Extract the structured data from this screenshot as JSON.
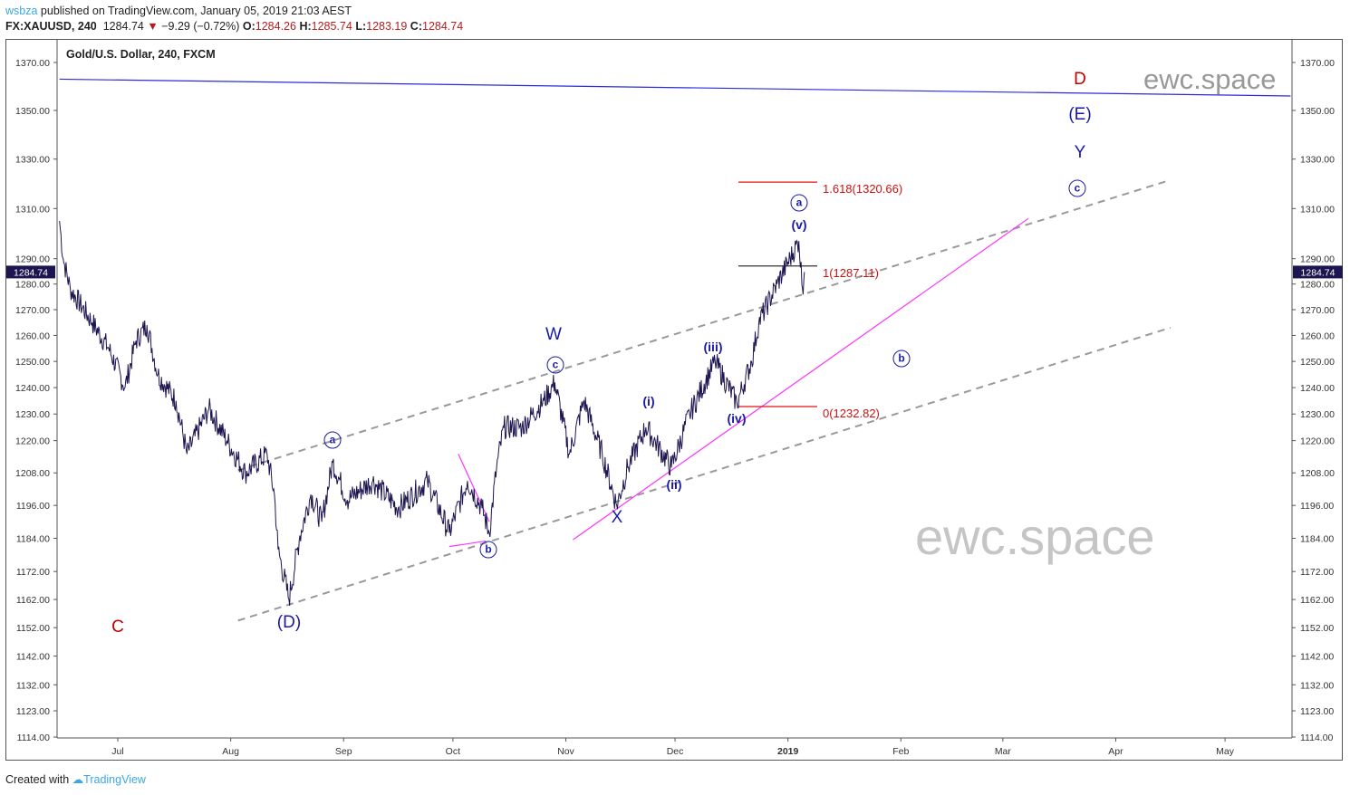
{
  "header": {
    "user": "wsbza",
    "published": "published on TradingView.com, January 05, 2019 21:03 AEST",
    "symbol": "FX:XAUUSD, 240",
    "last": "1284.74",
    "change": "−9.29 (−0.72%)",
    "o_label": "O:",
    "o": "1284.26",
    "h_label": "H:",
    "h": "1285.74",
    "l_label": "L:",
    "l": "1283.19",
    "c_label": "C:",
    "c": "1284.74"
  },
  "footer": {
    "created": "Created with",
    "brand": "TradingView"
  },
  "colors": {
    "price": "#1c1550",
    "channel": "#999999",
    "trend": "#ff33ff",
    "top": "#2b2bdd",
    "fibRed": "#e01010",
    "label": "#1a1aa8",
    "labelRed": "#c00000"
  },
  "chart_data": {
    "type": "line",
    "title": "Gold/U.S. Dollar, 240, FXCM",
    "watermark": "ewc.space",
    "x_unit": "days since Jul 1 2018",
    "xticks": [
      {
        "label": "Jul",
        "day": 0
      },
      {
        "label": "Aug",
        "day": 31
      },
      {
        "label": "Sep",
        "day": 62
      },
      {
        "label": "Oct",
        "day": 92
      },
      {
        "label": "Nov",
        "day": 123
      },
      {
        "label": "Dec",
        "day": 153
      },
      {
        "label": "2019",
        "day": 184
      },
      {
        "label": "Feb",
        "day": 215
      },
      {
        "label": "Mar",
        "day": 243
      },
      {
        "label": "Apr",
        "day": 274
      },
      {
        "label": "May",
        "day": 304
      }
    ],
    "yticks": [
      "1370.00",
      "1350.00",
      "1330.00",
      "1310.00",
      "1290.00",
      "1280.00",
      "1270.00",
      "1260.00",
      "1250.00",
      "1240.00",
      "1230.00",
      "1220.00",
      "1208.00",
      "1196.00",
      "1184.00",
      "1172.00",
      "1162.00",
      "1152.00",
      "1142.00",
      "1132.00",
      "1123.00",
      "1114.00"
    ],
    "ylim": [
      1114,
      1370
    ],
    "yscale": "log",
    "last_price": "1284.74",
    "series": [
      {
        "name": "XAUUSD",
        "points": [
          [
            -16,
            1305
          ],
          [
            -15,
            1290
          ],
          [
            -13,
            1278
          ],
          [
            -7,
            1265
          ],
          [
            -2.5,
            1255
          ],
          [
            2,
            1240
          ],
          [
            5,
            1258
          ],
          [
            8,
            1264
          ],
          [
            11,
            1245
          ],
          [
            16,
            1235
          ],
          [
            19,
            1215
          ],
          [
            25,
            1232
          ],
          [
            30,
            1220
          ],
          [
            35,
            1208
          ],
          [
            41,
            1215
          ],
          [
            43,
            1200
          ],
          [
            44,
            1180
          ],
          [
            47,
            1162
          ],
          [
            50,
            1185
          ],
          [
            53,
            1200
          ],
          [
            56,
            1190
          ],
          [
            59,
            1212
          ],
          [
            63,
            1198
          ],
          [
            70,
            1205
          ],
          [
            77,
            1195
          ],
          [
            85,
            1205
          ],
          [
            91,
            1186
          ],
          [
            96,
            1205
          ],
          [
            100,
            1195
          ],
          [
            102,
            1186
          ],
          [
            104,
            1210
          ],
          [
            106,
            1225
          ],
          [
            111,
            1225
          ],
          [
            117,
            1235
          ],
          [
            120,
            1242
          ],
          [
            124,
            1215
          ],
          [
            128,
            1235
          ],
          [
            133,
            1215
          ],
          [
            137,
            1196
          ],
          [
            140,
            1210
          ],
          [
            145,
            1225
          ],
          [
            152,
            1210
          ],
          [
            157,
            1230
          ],
          [
            164,
            1250
          ],
          [
            170,
            1234
          ],
          [
            174,
            1250
          ],
          [
            176,
            1265
          ],
          [
            181,
            1280
          ],
          [
            187,
            1297
          ],
          [
            188,
            1278
          ],
          [
            188.5,
            1284.74
          ]
        ]
      }
    ],
    "lines": [
      {
        "name": "resistance-line",
        "color": "#2b2bdd",
        "dash": false,
        "from": [
          -16,
          1363
        ],
        "to": [
          322,
          1356
        ]
      },
      {
        "name": "upper-channel",
        "color": "#999999",
        "dash": true,
        "from": [
          33,
          1209
        ],
        "to": [
          289,
          1321.5
        ]
      },
      {
        "name": "lower-channel",
        "color": "#999999",
        "dash": true,
        "from": [
          33,
          1154.5
        ],
        "to": [
          289,
          1263
        ]
      },
      {
        "name": "trendline",
        "color": "#ff33ff",
        "dash": false,
        "from": [
          125,
          1183.5
        ],
        "to": [
          250,
          1306
        ]
      },
      {
        "name": "b-wedge-upper",
        "color": "#ff33ff",
        "dash": false,
        "from": [
          93.5,
          1215
        ],
        "to": [
          102,
          1190
        ]
      },
      {
        "name": "b-wedge-lower",
        "color": "#ff33ff",
        "dash": false,
        "from": [
          91,
          1181
        ],
        "to": [
          101,
          1183
        ]
      }
    ],
    "fib": [
      {
        "label": "1.618(1320.66)",
        "price": 1320.66,
        "color": "#e01010"
      },
      {
        "label": "1(1287.11)",
        "price": 1287.11,
        "color": "#333333"
      },
      {
        "label": "0(1232.82)",
        "price": 1232.82,
        "color": "#e01010"
      }
    ],
    "wave_labels": {
      "C": "C",
      "D_red": "D",
      "D": "(D)",
      "E": "(E)",
      "W": "W",
      "X": "X",
      "Y": "Y",
      "a1": "a",
      "b1": "b",
      "c1": "c",
      "a2": "a",
      "b2": "b",
      "c2": "c",
      "i": "(i)",
      "ii": "(ii)",
      "iii": "(iii)",
      "iv": "(iv)",
      "v": "(v)"
    }
  }
}
